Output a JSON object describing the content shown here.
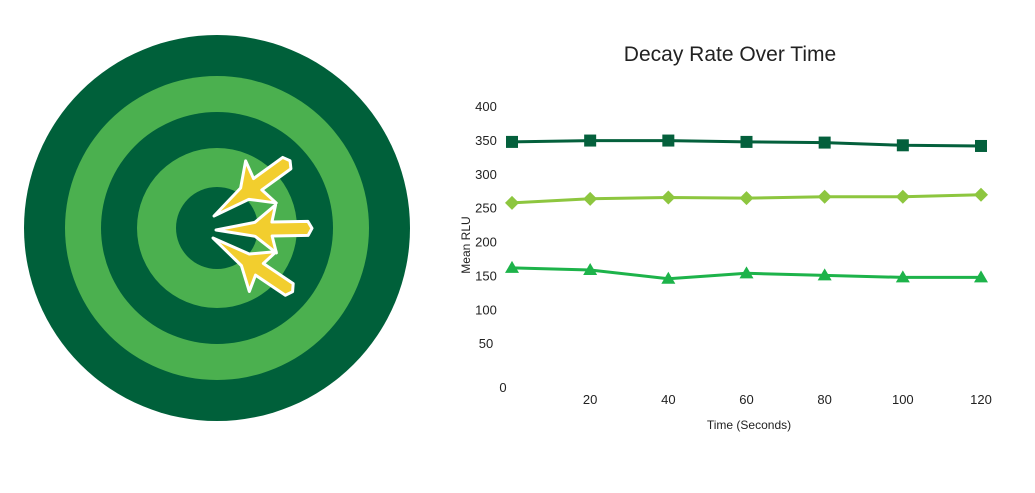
{
  "colors": {
    "target_dark": "#00603A",
    "target_light": "#4BB04F",
    "dart_fill": "#F2CE2E",
    "dart_outline": "#FFFFFF",
    "series_square": "#04603C",
    "series_diamond": "#8DC63F",
    "series_triangle": "#1DB34A"
  },
  "illustration": {
    "icon": "dartboard-with-three-darts-icon"
  },
  "chart_data": {
    "type": "line",
    "title": "Decay Rate Over Time",
    "xlabel": "Time (Seconds)",
    "ylabel": "Mean RLU",
    "x": [
      0,
      20,
      40,
      60,
      80,
      100,
      120
    ],
    "x_tick_labels": [
      "0",
      "20",
      "40",
      "60",
      "80",
      "100",
      "120"
    ],
    "y_tick_labels": [
      "50",
      "100",
      "150",
      "200",
      "250",
      "300",
      "350",
      "400"
    ],
    "ylim": [
      0,
      400
    ],
    "grid": false,
    "legend": "none",
    "series": [
      {
        "marker": "square",
        "color": "#04603C",
        "values": [
          347,
          349,
          349,
          347,
          346,
          342,
          341
        ]
      },
      {
        "marker": "diamond",
        "color": "#8DC63F",
        "values": [
          257,
          263,
          265,
          264,
          266,
          266,
          269
        ]
      },
      {
        "marker": "triangle",
        "color": "#1DB34A",
        "values": [
          161,
          158,
          145,
          153,
          150,
          147,
          147
        ]
      }
    ]
  }
}
